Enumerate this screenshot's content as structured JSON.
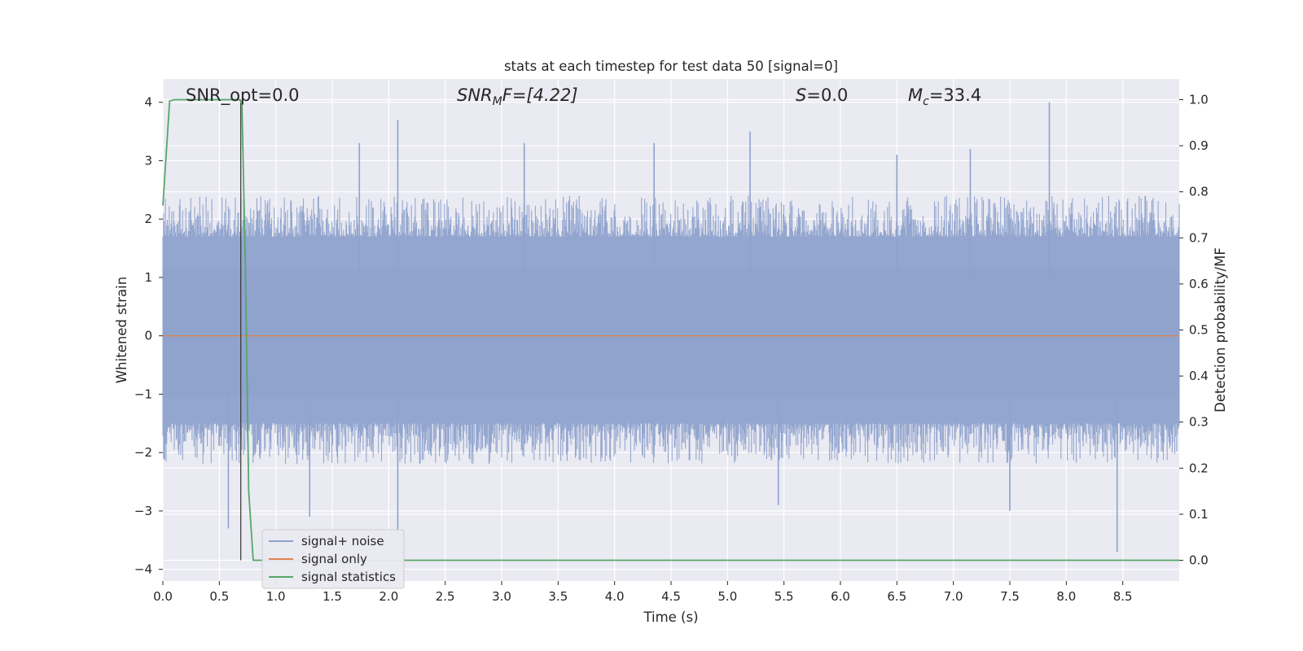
{
  "chart_data": {
    "type": "line",
    "title": "stats at each timestep for test data 50 [signal=0]",
    "xlabel": "Time (s)",
    "ylabel": "Whitened strain",
    "y2label": "Detection probability/MF",
    "xlim": [
      0.0,
      9.0
    ],
    "ylim": [
      -4.2,
      4.4
    ],
    "y2lim": [
      -0.045,
      1.045
    ],
    "xticks": [
      "0.0",
      "0.5",
      "1.0",
      "1.5",
      "2.0",
      "2.5",
      "3.0",
      "3.5",
      "4.0",
      "4.5",
      "5.0",
      "5.5",
      "6.0",
      "6.5",
      "7.0",
      "7.5",
      "8.0",
      "8.5"
    ],
    "yticks": [
      "4",
      "3",
      "2",
      "1",
      "0",
      "−1",
      "−2",
      "−3",
      "−4"
    ],
    "y2ticks": [
      "1.0",
      "0.9",
      "0.8",
      "0.7",
      "0.6",
      "0.5",
      "0.4",
      "0.3",
      "0.2",
      "0.1",
      "0.0"
    ],
    "grid": true,
    "legend_position": "lower-left",
    "annotations": {
      "snr_opt": "SNR_opt=0.0",
      "snr_mf_main": "SNR",
      "snr_mf_sub": "M",
      "snr_mf_rest": "F=[4.22]",
      "s_main": "S",
      "s_rest": "=0.0",
      "mc_main": "M",
      "mc_sub": "c",
      "mc_rest": "=33.4"
    },
    "vline_x": 0.69,
    "series": [
      {
        "name": "signal+ noise",
        "color": "#8ea2cc",
        "axis": "left",
        "kind": "noise",
        "x_range": [
          0.0,
          9.0
        ],
        "typical_peak_range": [
          1.7,
          2.4
        ],
        "typical_trough_range": [
          -1.5,
          -2.2
        ],
        "notable_peaks": [
          [
            1.74,
            3.3
          ],
          [
            2.08,
            3.7
          ],
          [
            3.2,
            3.3
          ],
          [
            4.35,
            3.3
          ],
          [
            5.2,
            3.5
          ],
          [
            6.5,
            3.1
          ],
          [
            7.15,
            3.2
          ],
          [
            7.85,
            4.0
          ]
        ],
        "notable_troughs": [
          [
            0.58,
            -3.3
          ],
          [
            1.3,
            -3.1
          ],
          [
            2.08,
            -3.4
          ],
          [
            5.45,
            -2.9
          ],
          [
            7.5,
            -3.0
          ],
          [
            8.45,
            -3.7
          ]
        ]
      },
      {
        "name": "signal only",
        "color": "#dd8452",
        "axis": "left",
        "x": [
          0.0,
          9.0
        ],
        "y": [
          0.0,
          0.0
        ]
      },
      {
        "name": "signal statistics",
        "color": "#55a868",
        "axis": "right",
        "x": [
          0.0,
          0.06,
          0.1,
          0.2,
          0.4,
          0.6,
          0.68,
          0.7,
          0.73,
          0.76,
          0.8,
          0.85,
          1.0,
          3.6,
          3.7,
          8.8,
          9.0
        ],
        "y": [
          0.77,
          0.997,
          1.0,
          1.0,
          1.0,
          1.0,
          1.0,
          0.99,
          0.65,
          0.15,
          0.0,
          0.0,
          0.0,
          0.0,
          0.0,
          0.0,
          0.0
        ]
      }
    ]
  }
}
